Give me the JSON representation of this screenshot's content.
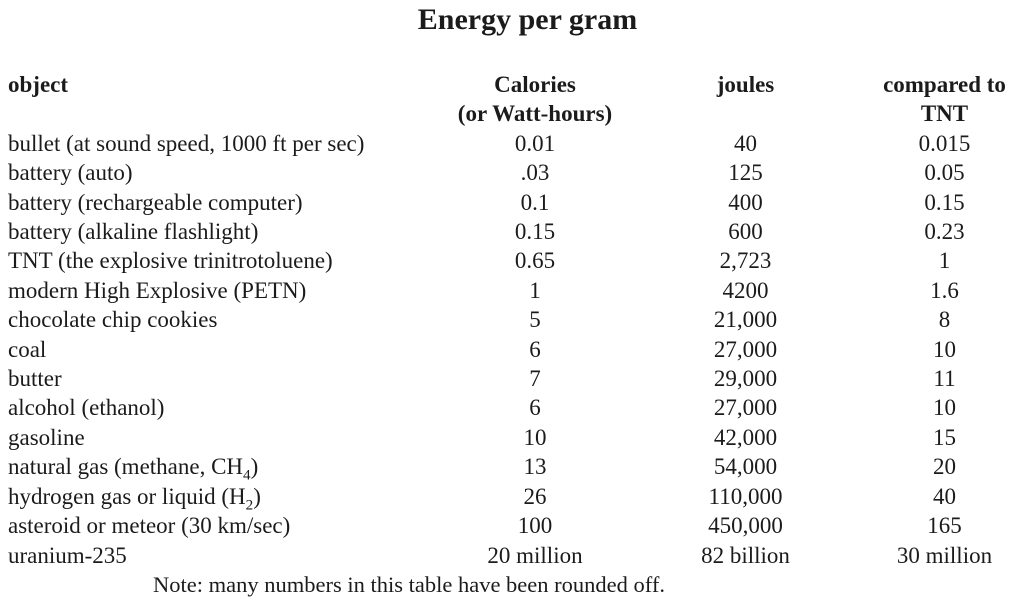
{
  "title": "Energy per gram",
  "table": {
    "headers": {
      "object": "object",
      "calories_line1": "Calories",
      "calories_line2": "(or Watt-hours)",
      "joules": "joules",
      "tnt_line1": "compared to",
      "tnt_line2": "TNT"
    },
    "rows": [
      {
        "object": "bullet (at sound speed, 1000 ft per sec)",
        "calories": "0.01",
        "joules": "40",
        "tnt": "0.015"
      },
      {
        "object": "battery (auto)",
        "calories": ".03",
        "joules": "125",
        "tnt": "0.05"
      },
      {
        "object": "battery (rechargeable computer)",
        "calories": "0.1",
        "joules": "400",
        "tnt": "0.15"
      },
      {
        "object": "battery (alkaline flashlight)",
        "calories": "0.15",
        "joules": "600",
        "tnt": "0.23"
      },
      {
        "object": "TNT (the explosive trinitrotoluene)",
        "calories": "0.65",
        "joules": "2,723",
        "tnt": "1"
      },
      {
        "object": "modern High Explosive (PETN)",
        "calories": "1",
        "joules": "4200",
        "tnt": "1.6"
      },
      {
        "object": "chocolate chip cookies",
        "calories": "5",
        "joules": "21,000",
        "tnt": "8"
      },
      {
        "object": "coal",
        "calories": "6",
        "joules": "27,000",
        "tnt": "10"
      },
      {
        "object": "butter",
        "calories": "7",
        "joules": "29,000",
        "tnt": "11"
      },
      {
        "object": "alcohol (ethanol)",
        "calories": "6",
        "joules": "27,000",
        "tnt": "10"
      },
      {
        "object": "gasoline",
        "calories": "10",
        "joules": "42,000",
        "tnt": "15"
      },
      {
        "object": "natural gas (methane, CH₄)",
        "calories": "13",
        "joules": "54,000",
        "tnt": "20"
      },
      {
        "object": "hydrogen gas or liquid (H₂)",
        "calories": "26",
        "joules": "110,000",
        "tnt": "40"
      },
      {
        "object": "asteroid or meteor (30 km/sec)",
        "calories": "100",
        "joules": "450,000",
        "tnt": "165"
      },
      {
        "object": "uranium-235",
        "calories": "20 million",
        "joules": "82 billion",
        "tnt": "30 million"
      }
    ]
  },
  "note": "Note: many numbers in this table have been rounded off.",
  "colors": {
    "background": "#ffffff",
    "text": "#1b1b1b"
  }
}
